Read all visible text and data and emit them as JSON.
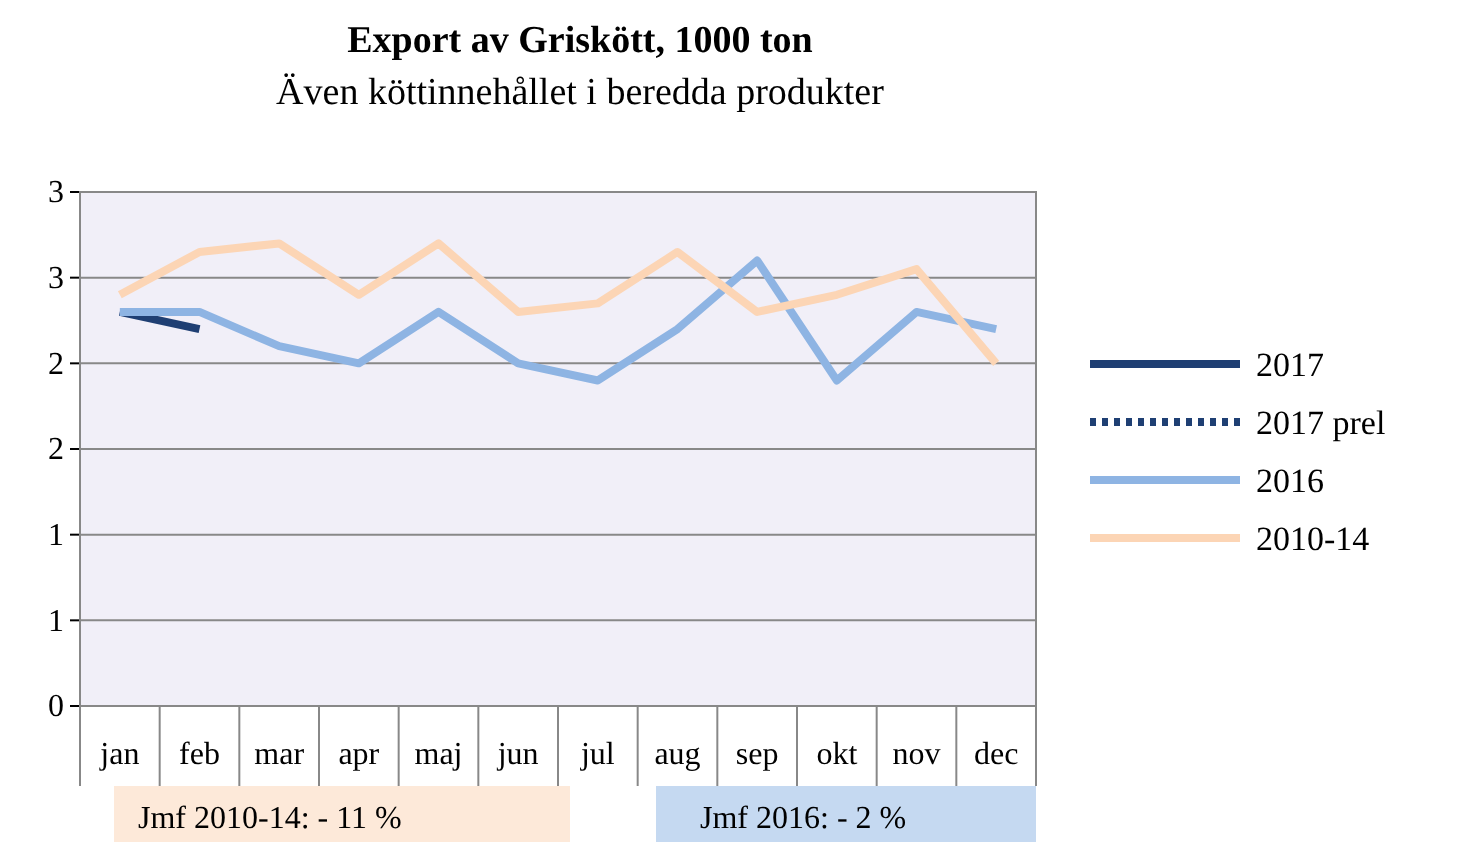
{
  "chart_data": {
    "type": "line",
    "title": "Export av Griskött, 1000 ton",
    "subtitle": "Även köttinnehållet i beredda produkter",
    "categories": [
      "jan",
      "feb",
      "mar",
      "apr",
      "maj",
      "jun",
      "jul",
      "aug",
      "sep",
      "okt",
      "nov",
      "dec"
    ],
    "ylim": [
      0,
      3
    ],
    "yticks": [
      0,
      {
        "value": 0.5,
        "label": "1"
      },
      1,
      {
        "value": 1.5,
        "label": "2"
      },
      2,
      {
        "value": 2.5,
        "label": "3"
      },
      3
    ],
    "grid": "y",
    "legend": "right",
    "marker": "none",
    "series": [
      {
        "name": "2017",
        "color": "#1f3f73",
        "values": [
          2.3,
          2.2,
          null,
          null,
          null,
          null,
          null,
          null,
          null,
          null,
          null,
          null
        ]
      },
      {
        "name": "2017 prel",
        "color": "#1f3f73",
        "line_style": "dotted",
        "values": [
          null,
          null,
          null,
          null,
          null,
          null,
          null,
          null,
          null,
          null,
          null,
          null
        ]
      },
      {
        "name": "2016",
        "color": "#8eb4e3",
        "values": [
          2.3,
          2.3,
          2.1,
          2.0,
          2.3,
          2.0,
          1.9,
          2.2,
          2.6,
          1.9,
          2.3,
          2.2
        ]
      },
      {
        "name": "2010-14",
        "color": "#fcd5b5",
        "values": [
          2.4,
          2.65,
          2.7,
          2.4,
          2.7,
          2.3,
          2.35,
          2.65,
          2.3,
          2.4,
          2.55,
          2.0
        ]
      }
    ],
    "annotations": [
      "Jmf 2010-14: - 11 %",
      "Jmf 2016: - 2 %"
    ]
  }
}
